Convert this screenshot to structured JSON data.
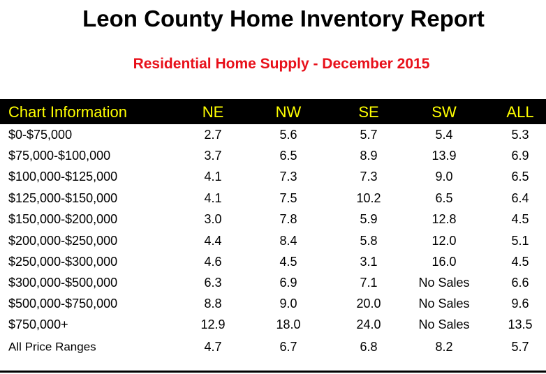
{
  "header": {
    "title": "Leon County Home Inventory Report",
    "subtitle": "Residential Home Supply - December 2015"
  },
  "table": {
    "columns": [
      "Chart Information",
      "NE",
      "NW",
      "SE",
      "SW",
      "ALL"
    ],
    "rows": [
      [
        "$0-$75,000",
        "2.7",
        "5.6",
        "5.7",
        "5.4",
        "5.3"
      ],
      [
        "$75,000-$100,000",
        "3.7",
        "6.5",
        "8.9",
        "13.9",
        "6.9"
      ],
      [
        "$100,000-$125,000",
        "4.1",
        "7.3",
        "7.3",
        "9.0",
        "6.5"
      ],
      [
        "$125,000-$150,000",
        "4.1",
        "7.5",
        "10.2",
        "6.5",
        "6.4"
      ],
      [
        "$150,000-$200,000",
        "3.0",
        "7.8",
        "5.9",
        "12.8",
        "4.5"
      ],
      [
        "$200,000-$250,000",
        "4.4",
        "8.4",
        "5.8",
        "12.0",
        "5.1"
      ],
      [
        "$250,000-$300,000",
        "4.6",
        "4.5",
        "3.1",
        "16.0",
        "4.5"
      ],
      [
        "$300,000-$500,000",
        "6.3",
        "6.9",
        "7.1",
        "No Sales",
        "6.6"
      ],
      [
        "$500,000-$750,000",
        "8.8",
        "9.0",
        "20.0",
        "No Sales",
        "9.6"
      ],
      [
        "$750,000+",
        "12.9",
        "18.0",
        "24.0",
        "No Sales",
        "13.5"
      ],
      [
        "All Price Ranges",
        "4.7",
        "6.7",
        "6.8",
        "8.2",
        "5.7"
      ]
    ]
  }
}
